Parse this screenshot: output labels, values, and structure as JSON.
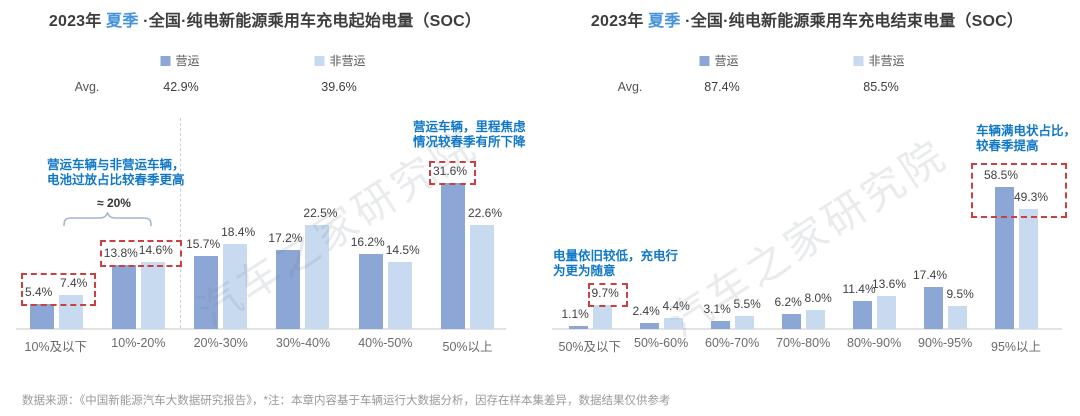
{
  "footer": {
    "text": "数据来源：《中国新能源汽车大数据研究报告》，*注：本章内容基于车辆运行大数据分析，因存在样本集差异，数据结果仅供参考"
  },
  "watermark": {
    "text": "汽车之家研究院"
  },
  "colors": {
    "operational": "#8CA6D5",
    "non_operational": "#C7DAF0",
    "title_accent": "#4593DD",
    "annotation_blue": "#1178C8",
    "red_box": "#CB4040",
    "axis": "#E3E3E3",
    "divider": "#D0D0D0"
  },
  "charts": [
    {
      "title_prefix": "2023年 ",
      "title_accent": "夏季",
      "title_rest": " ·全国·纯电新能源乘用车充电起始电量（SOC）",
      "legend": [
        {
          "label": "营运"
        },
        {
          "label": "非营运"
        }
      ],
      "avg_label": "Avg.",
      "avg_values": [
        "42.9%",
        "39.6%"
      ],
      "chart_data": {
        "type": "bar",
        "title": "2023年 夏季 ·全国·纯电新能源乘用车充电起始电量（SOC）",
        "categories": [
          "10%及以下",
          "10%-20%",
          "20%-30%",
          "30%-40%",
          "40%-50%",
          "50%以上"
        ],
        "series": [
          {
            "name": "营运",
            "avg": "42.9%",
            "values": [
              5.4,
              13.8,
              15.7,
              17.2,
              16.2,
              31.6
            ]
          },
          {
            "name": "非营运",
            "avg": "39.6%",
            "values": [
              7.4,
              14.6,
              18.4,
              22.5,
              14.5,
              22.6
            ]
          }
        ],
        "unit": "%",
        "ylim": [
          0,
          35
        ],
        "grid": false,
        "legend_position": "top",
        "annotations": [
          {
            "type": "text",
            "lines": [
              "营运车辆与非营运车辆，",
              "电池过放占比较春季更高"
            ],
            "x": 47,
            "y": 158
          },
          {
            "type": "brace",
            "label": "≈ 20%",
            "x1": 63,
            "x2": 152,
            "y": 212,
            "label_x": 114,
            "label_y": 196
          },
          {
            "type": "text",
            "lines": [
              "营运车辆，里程焦虑",
              "情况较春季有所下降"
            ],
            "x": 413,
            "y": 120
          },
          {
            "type": "redbox",
            "group": 0,
            "labels": "both"
          },
          {
            "type": "redbox",
            "group": 1,
            "labels": "both"
          },
          {
            "type": "redbox",
            "group": 5,
            "labels": "dark"
          },
          {
            "type": "divider",
            "x": 180
          }
        ]
      }
    },
    {
      "title_prefix": "2023年 ",
      "title_accent": "夏季",
      "title_rest": " ·全国·纯电新能源乘用车充电结束电量（SOC）",
      "legend": [
        {
          "label": "营运"
        },
        {
          "label": "非营运"
        }
      ],
      "avg_label": "Avg.",
      "avg_values": [
        "87.4%",
        "85.5%"
      ],
      "chart_data": {
        "type": "bar",
        "title": "2023年 夏季 ·全国·纯电新能源乘用车充电结束电量（SOC）",
        "categories": [
          "50%及以下",
          "50%-60%",
          "60%-70%",
          "70%-80%",
          "80%-90%",
          "90%-95%",
          "95%以上"
        ],
        "series": [
          {
            "name": "营运",
            "avg": "87.4%",
            "values": [
              1.1,
              2.4,
              3.1,
              6.2,
              11.4,
              17.4,
              58.5
            ]
          },
          {
            "name": "非营运",
            "avg": "85.5%",
            "values": [
              9.7,
              4.4,
              5.5,
              8.0,
              13.6,
              9.5,
              49.3
            ]
          }
        ],
        "unit": "%",
        "ylim": [
          0,
          65
        ],
        "grid": false,
        "legend_position": "top",
        "annotations": [
          {
            "type": "text",
            "lines": [
              "电量依旧较低，充电行",
              "为更为随意"
            ],
            "x": 553,
            "y": 249
          },
          {
            "type": "text",
            "lines": [
              "车辆满电状占比，",
              "较春季提高"
            ],
            "x": 976,
            "y": 124
          },
          {
            "type": "redbox",
            "group": 0,
            "labels": "light"
          },
          {
            "type": "redbox",
            "group": 6,
            "labels": "both",
            "tall": true
          }
        ]
      }
    }
  ]
}
